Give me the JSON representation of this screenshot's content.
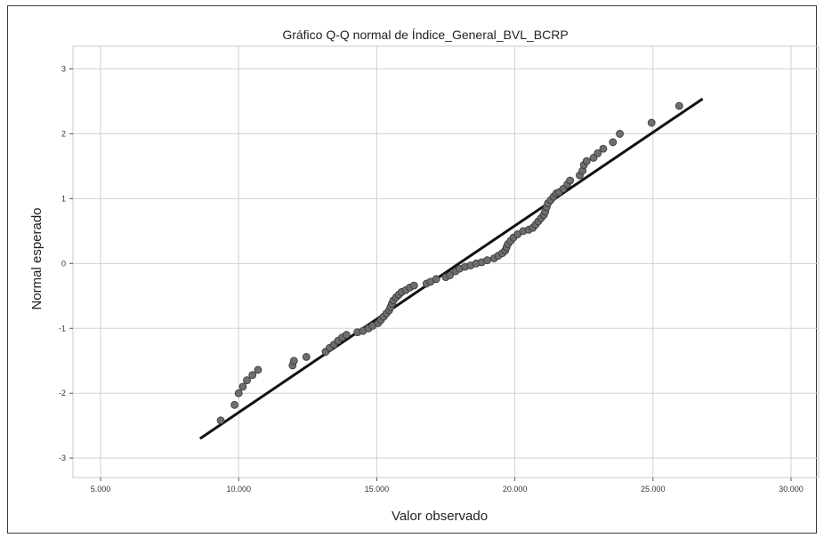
{
  "chart_data": {
    "type": "scatter",
    "title": "Gráfico Q-Q normal de Índice_General_BVL_BCRP",
    "xlabel": "Valor observado",
    "ylabel": "Normal esperado",
    "xlim": [
      4000,
      31000
    ],
    "ylim": [
      -3.3,
      3.35
    ],
    "x_ticks": [
      5000,
      10000,
      15000,
      20000,
      25000,
      30000
    ],
    "x_tick_labels": [
      "5.000",
      "10.000",
      "15.000",
      "20.000",
      "25.000",
      "30.000"
    ],
    "y_ticks": [
      -3,
      -2,
      -1,
      0,
      1,
      2,
      3
    ],
    "y_tick_labels": [
      "-3",
      "-2",
      "-1",
      "0",
      "1",
      "2",
      "3"
    ],
    "grid": true,
    "reference_line": {
      "x": [
        8600,
        26800
      ],
      "y": [
        -2.7,
        2.54
      ]
    },
    "series": [
      {
        "marker_color": "#6e6e6e",
        "points": [
          [
            9350,
            -2.42
          ],
          [
            9850,
            -2.18
          ],
          [
            10000,
            -2.0
          ],
          [
            10150,
            -1.9
          ],
          [
            10300,
            -1.8
          ],
          [
            10500,
            -1.72
          ],
          [
            10700,
            -1.64
          ],
          [
            11950,
            -1.57
          ],
          [
            12000,
            -1.5
          ],
          [
            12450,
            -1.44
          ],
          [
            13150,
            -1.36
          ],
          [
            13300,
            -1.3
          ],
          [
            13450,
            -1.25
          ],
          [
            13600,
            -1.19
          ],
          [
            13750,
            -1.14
          ],
          [
            13900,
            -1.1
          ],
          [
            14300,
            -1.06
          ],
          [
            14500,
            -1.04
          ],
          [
            14700,
            -1.0
          ],
          [
            14850,
            -0.96
          ],
          [
            15050,
            -0.92
          ],
          [
            15150,
            -0.87
          ],
          [
            15250,
            -0.82
          ],
          [
            15350,
            -0.77
          ],
          [
            15450,
            -0.72
          ],
          [
            15500,
            -0.67
          ],
          [
            15550,
            -0.62
          ],
          [
            15600,
            -0.57
          ],
          [
            15700,
            -0.52
          ],
          [
            15800,
            -0.48
          ],
          [
            15900,
            -0.44
          ],
          [
            16050,
            -0.41
          ],
          [
            16200,
            -0.37
          ],
          [
            16350,
            -0.34
          ],
          [
            16800,
            -0.31
          ],
          [
            16950,
            -0.28
          ],
          [
            17150,
            -0.24
          ],
          [
            17500,
            -0.21
          ],
          [
            17650,
            -0.18
          ],
          [
            17850,
            -0.12
          ],
          [
            18000,
            -0.08
          ],
          [
            18200,
            -0.05
          ],
          [
            18400,
            -0.03
          ],
          [
            18600,
            0.0
          ],
          [
            18800,
            0.02
          ],
          [
            19000,
            0.05
          ],
          [
            19250,
            0.08
          ],
          [
            19400,
            0.12
          ],
          [
            19550,
            0.16
          ],
          [
            19650,
            0.2
          ],
          [
            19700,
            0.25
          ],
          [
            19750,
            0.3
          ],
          [
            19850,
            0.35
          ],
          [
            19950,
            0.4
          ],
          [
            20100,
            0.45
          ],
          [
            20300,
            0.5
          ],
          [
            20500,
            0.52
          ],
          [
            20650,
            0.55
          ],
          [
            20750,
            0.6
          ],
          [
            20850,
            0.65
          ],
          [
            20950,
            0.7
          ],
          [
            21050,
            0.75
          ],
          [
            21100,
            0.8
          ],
          [
            21150,
            0.87
          ],
          [
            21200,
            0.93
          ],
          [
            21300,
            0.98
          ],
          [
            21400,
            1.03
          ],
          [
            21500,
            1.08
          ],
          [
            21600,
            1.1
          ],
          [
            21750,
            1.15
          ],
          [
            21900,
            1.22
          ],
          [
            22000,
            1.28
          ],
          [
            22350,
            1.36
          ],
          [
            22450,
            1.43
          ],
          [
            22500,
            1.52
          ],
          [
            22600,
            1.58
          ],
          [
            22850,
            1.63
          ],
          [
            23000,
            1.7
          ],
          [
            23200,
            1.77
          ],
          [
            23550,
            1.87
          ],
          [
            23800,
            2.0
          ],
          [
            24950,
            2.17
          ],
          [
            25950,
            2.43
          ]
        ]
      }
    ]
  }
}
